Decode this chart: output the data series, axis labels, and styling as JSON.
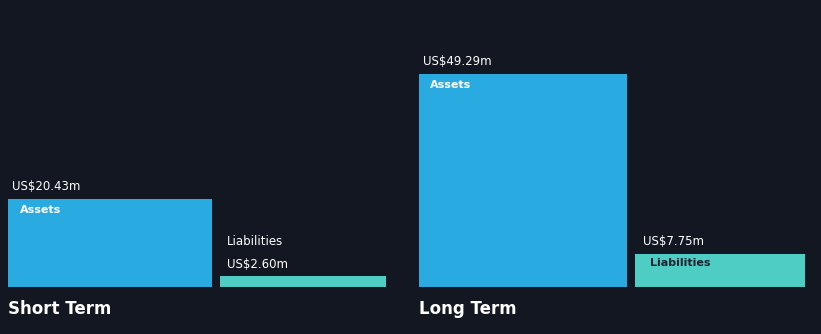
{
  "background_color": "#131722",
  "text_color": "#ffffff",
  "label_color_dark": "#1c2333",
  "short_term": {
    "assets_value": 20.43,
    "assets_label": "US$20.43m",
    "assets_color": "#29abe2",
    "liabilities_value": 2.6,
    "liabilities_label": "US$2.60m",
    "liabilities_color": "#4ecdc4",
    "title": "Short Term",
    "bar_label_assets": "Assets",
    "bar_label_liabilities": "Liabilities"
  },
  "long_term": {
    "assets_value": 49.29,
    "assets_label": "US$49.29m",
    "assets_color": "#29abe2",
    "liabilities_value": 7.75,
    "liabilities_label": "US$7.75m",
    "liabilities_color": "#4ecdc4",
    "title": "Long Term",
    "bar_label_assets": "Assets",
    "bar_label_liabilities": "Liabilities"
  },
  "global_max": 49.29,
  "font_size_value": 8.5,
  "font_size_label": 8,
  "font_size_title": 12
}
